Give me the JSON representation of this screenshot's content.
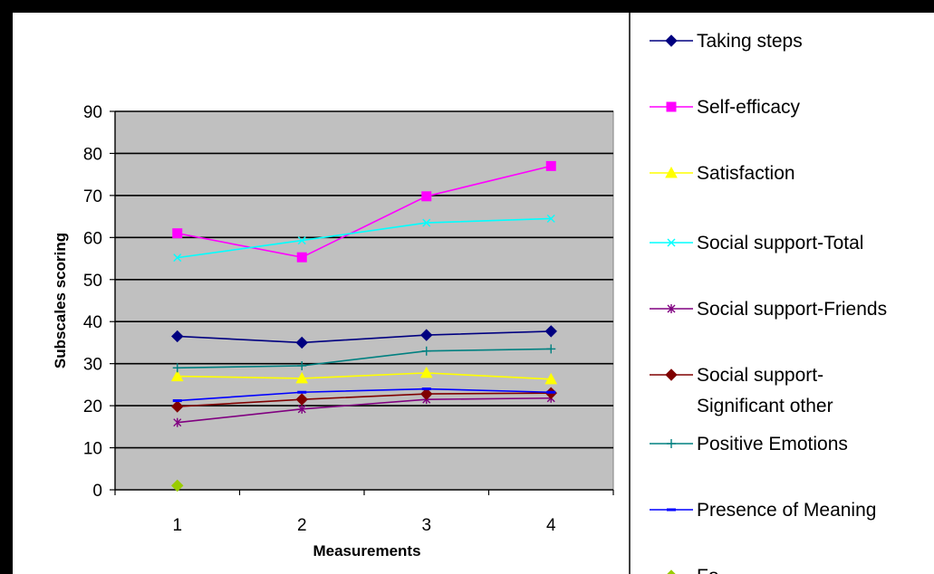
{
  "chart_data": {
    "type": "line",
    "title": "",
    "xlabel": "Measurements",
    "ylabel": "Subscales scoring",
    "categories": [
      "1",
      "2",
      "3",
      "4"
    ],
    "ylim": [
      0,
      90
    ],
    "yticks": [
      0,
      10,
      20,
      30,
      40,
      50,
      60,
      70,
      80,
      90
    ],
    "grid": "horizontal",
    "plot_background": "#C0C0C0",
    "legend_position": "right",
    "series": [
      {
        "name": "Taking steps",
        "color": "#000080",
        "marker": "diamond",
        "values": [
          36.5,
          35.0,
          36.8,
          37.7
        ]
      },
      {
        "name": "Self-efficacy",
        "color": "#FF00FF",
        "marker": "square",
        "values": [
          61.0,
          55.3,
          69.8,
          77.0
        ]
      },
      {
        "name": "Satisfaction",
        "color": "#FFFF00",
        "marker": "triangle",
        "values": [
          27.0,
          26.5,
          27.8,
          26.3
        ]
      },
      {
        "name": "Social support-Total",
        "color": "#00FFFF",
        "marker": "x",
        "values": [
          55.2,
          59.3,
          63.5,
          64.5
        ]
      },
      {
        "name": "Social support-Friends",
        "color": "#800080",
        "marker": "star",
        "values": [
          16.0,
          19.2,
          21.5,
          21.8
        ]
      },
      {
        "name": "Social support-Significant other",
        "name_lines": [
          "Social support-",
          "Significant other"
        ],
        "color": "#800000",
        "marker": "diamond",
        "values": [
          19.8,
          21.5,
          22.8,
          23.0
        ]
      },
      {
        "name": "Positive Emotions",
        "color": "#008080",
        "marker": "plus",
        "values": [
          29.0,
          29.5,
          33.0,
          33.5
        ]
      },
      {
        "name": "Presence of Meaning",
        "color": "#0000FF",
        "marker": "dash",
        "values": [
          21.2,
          23.2,
          24.0,
          23.2
        ]
      },
      {
        "name": "Fo...",
        "color": "#99CC00",
        "marker": "diamond",
        "values": [
          1.0,
          null,
          null,
          null
        ]
      }
    ]
  }
}
